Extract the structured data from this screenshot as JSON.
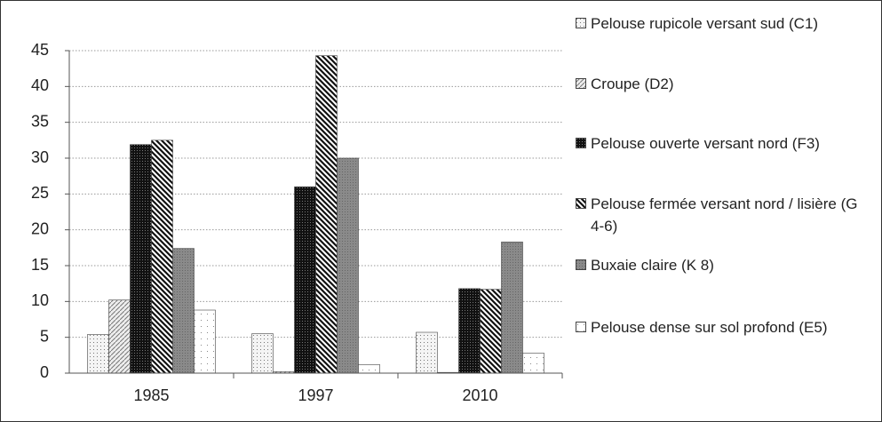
{
  "chart_data": {
    "type": "bar",
    "categories": [
      "1985",
      "1997",
      "2010"
    ],
    "series": [
      {
        "name": "Pelouse rupicole versant sud (C1)",
        "color": "#f0f0f0",
        "pattern": "dots-light",
        "values": [
          5.4,
          5.5,
          5.7
        ]
      },
      {
        "name": "Croupe (D2)",
        "color": "#e0e0e0",
        "pattern": "diag-forward",
        "values": [
          10.2,
          0.2,
          0.1
        ]
      },
      {
        "name": "Pelouse ouverte versant nord (F3)",
        "color": "#1a1a1a",
        "pattern": "dots-dark",
        "values": [
          31.9,
          26.0,
          11.8
        ]
      },
      {
        "name": "Pelouse fermée versant nord / lisière (G 4-6)",
        "color": "#ffffff",
        "pattern": "diag-back",
        "values": [
          32.5,
          44.3,
          11.7
        ]
      },
      {
        "name": "Buxaie claire (K 8)",
        "color": "#8c8c8c",
        "pattern": "gray",
        "values": [
          17.4,
          30.0,
          18.3
        ]
      },
      {
        "name": "Pelouse dense sur sol profond (E5)",
        "color": "#ffffff",
        "pattern": "dots-sparse",
        "values": [
          8.8,
          1.2,
          2.8
        ]
      }
    ],
    "ylim": [
      0,
      45
    ],
    "yticks": [
      0,
      5,
      10,
      15,
      20,
      25,
      30,
      35,
      40,
      45
    ],
    "grid": true,
    "legend": "right"
  }
}
